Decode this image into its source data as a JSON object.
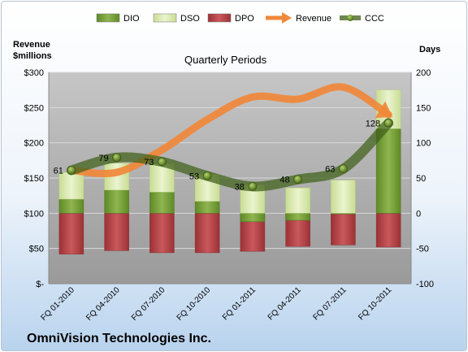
{
  "chart_data": {
    "type": "bar",
    "title": "Quarterly Periods",
    "left_axis_label": [
      "Revenue",
      "$millions"
    ],
    "right_axis_label": "Days",
    "company": "OmniVision Technologies Inc.",
    "categories": [
      "FQ 01-2010",
      "FQ 04-2010",
      "FQ 07-2010",
      "FQ 10-2010",
      "FQ 01-2011",
      "FQ 04-2011",
      "FQ 07-2011",
      "FQ 10-2011"
    ],
    "left_ticks": [
      "$300",
      "$250",
      "$200",
      "$150",
      "$100",
      "$50",
      "$-"
    ],
    "right_ticks": [
      "200",
      "150",
      "100",
      "50",
      "0",
      "-50",
      "-100"
    ],
    "left_ylim": [
      0,
      300
    ],
    "right_ylim": [
      -100,
      200
    ],
    "legend": [
      "DIO",
      "DSO",
      "DPO",
      "Revenue",
      "CCC"
    ],
    "legend_position": "top",
    "series": [
      {
        "name": "DIO",
        "axis": "right",
        "values": [
          20,
          33,
          30,
          17,
          -12,
          -10,
          -1,
          120
        ]
      },
      {
        "name": "DSO",
        "axis": "right",
        "values": [
          38,
          38,
          40,
          38,
          40,
          36,
          47,
          55
        ]
      },
      {
        "name": "DPO",
        "axis": "right",
        "values": [
          -58,
          -53,
          -56,
          -56,
          -54,
          -47,
          -45,
          -48
        ]
      },
      {
        "name": "Revenue",
        "axis": "left",
        "values": [
          161,
          158,
          190,
          233,
          265,
          262,
          279,
          240
        ]
      },
      {
        "name": "CCC",
        "axis": "right",
        "values": [
          61,
          79,
          73,
          53,
          38,
          48,
          63,
          128
        ]
      }
    ],
    "ccc_labels": [
      "61",
      "79",
      "73",
      "53",
      "38",
      "48",
      "63",
      "128"
    ],
    "colors": {
      "DIO": "#7da33f",
      "DSO": "#dcebb5",
      "DPO": "#b8464a",
      "Revenue": "#f0883a",
      "CCC": "#4b6b1e",
      "plot_bg": "#a8a8a8"
    }
  }
}
